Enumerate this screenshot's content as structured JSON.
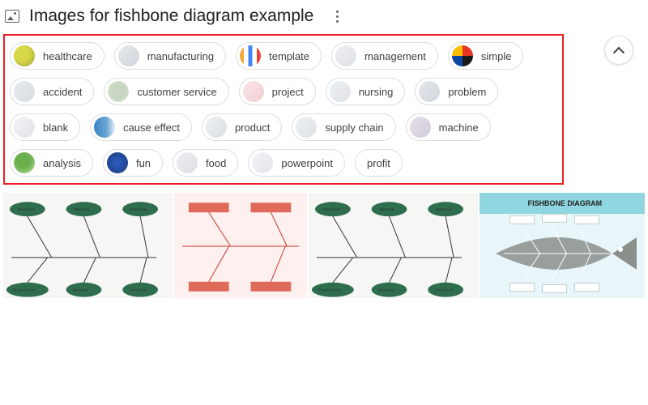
{
  "header": {
    "title": "Images for fishbone diagram example"
  },
  "chips": [
    {
      "label": "healthcare",
      "thumbClass": "t-healthcare"
    },
    {
      "label": "manufacturing",
      "thumbClass": "t-manufacturing"
    },
    {
      "label": "template",
      "thumbClass": "t-template"
    },
    {
      "label": "management",
      "thumbClass": "t-management"
    },
    {
      "label": "simple",
      "thumbClass": "t-simple"
    },
    {
      "label": "accident",
      "thumbClass": "t-accident"
    },
    {
      "label": "customer service",
      "thumbClass": "t-customer"
    },
    {
      "label": "project",
      "thumbClass": "t-project"
    },
    {
      "label": "nursing",
      "thumbClass": "t-nursing"
    },
    {
      "label": "problem",
      "thumbClass": "t-problem"
    },
    {
      "label": "blank",
      "thumbClass": "t-blank"
    },
    {
      "label": "cause effect",
      "thumbClass": "t-cause"
    },
    {
      "label": "product",
      "thumbClass": "t-product"
    },
    {
      "label": "supply chain",
      "thumbClass": "t-supply"
    },
    {
      "label": "machine",
      "thumbClass": "t-machine"
    },
    {
      "label": "analysis",
      "thumbClass": "t-analysis"
    },
    {
      "label": "fun",
      "thumbClass": "t-fun"
    },
    {
      "label": "food",
      "thumbClass": "t-food"
    },
    {
      "label": "powerpoint",
      "thumbClass": "t-powerpoint"
    },
    {
      "label": "profit",
      "thumbClass": null
    }
  ],
  "results": {
    "fishbone_title": "FISHBONE DIAGRAM"
  },
  "colors": {
    "highlight_border": "#ee1c25",
    "chip_border": "#dadce0",
    "text_primary": "#202124",
    "text_secondary": "#3c4043"
  }
}
